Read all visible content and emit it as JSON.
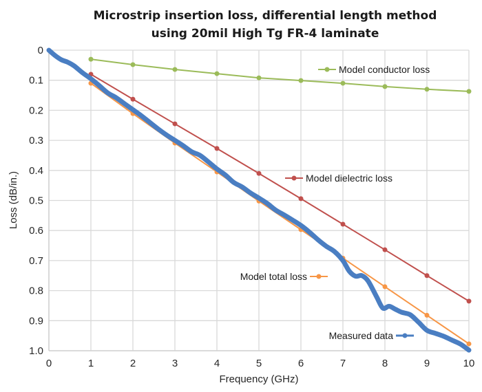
{
  "chart_data": {
    "type": "line",
    "title": [
      "Microstrip insertion loss, differential length method",
      "using 20mil High Tg FR-4 laminate"
    ],
    "xlabel": "Frequency (GHz)",
    "ylabel": "Loss (dB/in.)",
    "xlim": [
      0,
      10
    ],
    "ylim": [
      0,
      1.0
    ],
    "y_inverted": true,
    "grid": true,
    "x_ticks": [
      "0",
      "1",
      "2",
      "3",
      "4",
      "5",
      "6",
      "7",
      "8",
      "9",
      "10"
    ],
    "y_ticks": [
      "0",
      "0.1",
      "0.2",
      "0.3",
      "0.4",
      "0.5",
      "0.6",
      "0.7",
      "0.8",
      "0.9",
      "1.0"
    ],
    "series": [
      {
        "name": "Model conductor loss",
        "color": "#9BBB59",
        "markers": true,
        "x": [
          1,
          2,
          3,
          4,
          5,
          6,
          7,
          8,
          9,
          10
        ],
        "y": [
          0.03,
          0.048,
          0.064,
          0.078,
          0.092,
          0.101,
          0.11,
          0.121,
          0.13,
          0.137
        ]
      },
      {
        "name": "Model dielectric loss",
        "color": "#C0504D",
        "markers": true,
        "x": [
          1,
          2,
          3,
          4,
          5,
          6,
          7,
          8,
          9,
          10
        ],
        "y": [
          0.08,
          0.163,
          0.245,
          0.327,
          0.41,
          0.494,
          0.579,
          0.664,
          0.75,
          0.835
        ]
      },
      {
        "name": "Model total loss",
        "color": "#F79646",
        "markers": true,
        "x": [
          1,
          2,
          3,
          4,
          5,
          6,
          7,
          8,
          9,
          10
        ],
        "y": [
          0.11,
          0.211,
          0.309,
          0.405,
          0.502,
          0.597,
          0.692,
          0.787,
          0.882,
          0.977
        ]
      },
      {
        "name": "Measured data",
        "color": "#4A7EC2",
        "markers": false,
        "thick": true,
        "x": [
          0,
          0.15,
          0.3,
          0.45,
          0.6,
          0.8,
          1.0,
          1.2,
          1.4,
          1.6,
          1.8,
          2.0,
          2.2,
          2.4,
          2.6,
          2.8,
          3.0,
          3.2,
          3.4,
          3.6,
          3.8,
          4.0,
          4.2,
          4.4,
          4.6,
          4.8,
          5.0,
          5.2,
          5.4,
          5.6,
          5.8,
          6.0,
          6.2,
          6.4,
          6.6,
          6.8,
          7.0,
          7.15,
          7.3,
          7.45,
          7.6,
          7.8,
          7.95,
          8.1,
          8.25,
          8.4,
          8.6,
          8.8,
          9.0,
          9.2,
          9.4,
          9.6,
          9.8,
          10.0
        ],
        "y": [
          0.0,
          0.018,
          0.032,
          0.04,
          0.052,
          0.075,
          0.095,
          0.118,
          0.142,
          0.158,
          0.178,
          0.198,
          0.218,
          0.24,
          0.262,
          0.282,
          0.3,
          0.318,
          0.338,
          0.35,
          0.372,
          0.395,
          0.415,
          0.44,
          0.455,
          0.475,
          0.492,
          0.51,
          0.532,
          0.548,
          0.565,
          0.583,
          0.605,
          0.63,
          0.652,
          0.67,
          0.7,
          0.735,
          0.752,
          0.75,
          0.768,
          0.82,
          0.858,
          0.852,
          0.862,
          0.872,
          0.88,
          0.905,
          0.932,
          0.942,
          0.952,
          0.965,
          0.978,
          0.998
        ]
      }
    ],
    "legend": [
      {
        "series": 0,
        "text": "Model conductor loss",
        "placement": "upper-right, marker left of text"
      },
      {
        "series": 1,
        "text": "Model dielectric loss",
        "placement": "middle-right, marker left of text"
      },
      {
        "series": 2,
        "text": "Model total loss",
        "placement": "lower-middle, marker right of text"
      },
      {
        "series": 3,
        "text": "Measured data",
        "placement": "bottom-right, marker right of text"
      }
    ]
  }
}
